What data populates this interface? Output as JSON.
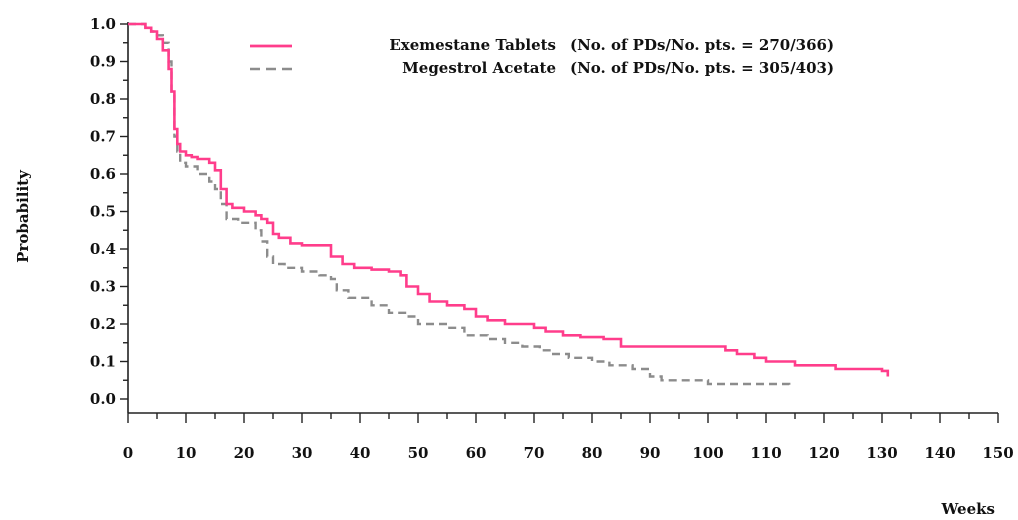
{
  "chart_data": {
    "type": "line",
    "xlabel": "Weeks",
    "ylabel": "Probability",
    "xlim": [
      0,
      150
    ],
    "ylim": [
      0.0,
      1.0
    ],
    "x_ticks": [
      0,
      10,
      20,
      30,
      40,
      50,
      60,
      70,
      80,
      90,
      100,
      110,
      120,
      130,
      140,
      150
    ],
    "y_ticks": [
      "0.0",
      "0.1",
      "0.2",
      "0.3",
      "0.4",
      "0.5",
      "0.6",
      "0.7",
      "0.8",
      "0.9",
      "1.0"
    ],
    "grid": false,
    "legend": {
      "placement": "top-center",
      "entries": [
        {
          "name": "Exemestane Tablets",
          "detail": "(No. of PDs/No. pts. = 270/366)"
        },
        {
          "name": "Megestrol Acetate",
          "detail": "(No. of PDs/No. pts. = 305/403)"
        }
      ]
    },
    "series": [
      {
        "name": "Exemestane Tablets",
        "color": "#ff3d8b",
        "style": "solid",
        "x": [
          0,
          2,
          3,
          4,
          5,
          6,
          7,
          7.5,
          8,
          8.5,
          9,
          10,
          11,
          12,
          13,
          14,
          15,
          16,
          17,
          18,
          20,
          22,
          23,
          24,
          25,
          26,
          28,
          30,
          33,
          35,
          37,
          39,
          42,
          45,
          47,
          48,
          50,
          52,
          55,
          58,
          60,
          62,
          65,
          68,
          70,
          72,
          75,
          78,
          82,
          85,
          90,
          95,
          100,
          103,
          105,
          108,
          110,
          115,
          120,
          122,
          126,
          130,
          131
        ],
        "y": [
          1.0,
          1.0,
          0.99,
          0.98,
          0.96,
          0.93,
          0.88,
          0.82,
          0.72,
          0.68,
          0.66,
          0.65,
          0.645,
          0.64,
          0.64,
          0.63,
          0.61,
          0.56,
          0.52,
          0.51,
          0.5,
          0.49,
          0.48,
          0.47,
          0.44,
          0.43,
          0.415,
          0.41,
          0.41,
          0.38,
          0.36,
          0.35,
          0.345,
          0.34,
          0.33,
          0.3,
          0.28,
          0.26,
          0.25,
          0.24,
          0.22,
          0.21,
          0.2,
          0.2,
          0.19,
          0.18,
          0.17,
          0.165,
          0.16,
          0.14,
          0.14,
          0.14,
          0.14,
          0.13,
          0.12,
          0.11,
          0.1,
          0.09,
          0.09,
          0.08,
          0.08,
          0.075,
          0.06
        ]
      },
      {
        "name": "Megestrol Acetate",
        "color": "#8c8c8c",
        "style": "dashed",
        "x": [
          0,
          2,
          3,
          4,
          5,
          6,
          7,
          7.5,
          8,
          8.5,
          9,
          10,
          12,
          14,
          15,
          16,
          17,
          19,
          22,
          23,
          24,
          25,
          27,
          30,
          33,
          35,
          36,
          38,
          42,
          45,
          48,
          50,
          55,
          58,
          62,
          65,
          68,
          71,
          73,
          76,
          80,
          83,
          87,
          90,
          92,
          95,
          100,
          105,
          110,
          114
        ],
        "y": [
          1.0,
          1.0,
          0.99,
          0.98,
          0.97,
          0.95,
          0.9,
          0.82,
          0.7,
          0.66,
          0.63,
          0.62,
          0.6,
          0.58,
          0.56,
          0.52,
          0.48,
          0.47,
          0.45,
          0.42,
          0.38,
          0.36,
          0.35,
          0.34,
          0.33,
          0.32,
          0.29,
          0.27,
          0.25,
          0.23,
          0.22,
          0.2,
          0.19,
          0.17,
          0.16,
          0.15,
          0.14,
          0.13,
          0.12,
          0.11,
          0.1,
          0.09,
          0.08,
          0.06,
          0.05,
          0.05,
          0.04,
          0.04,
          0.04,
          0.03
        ]
      }
    ]
  }
}
